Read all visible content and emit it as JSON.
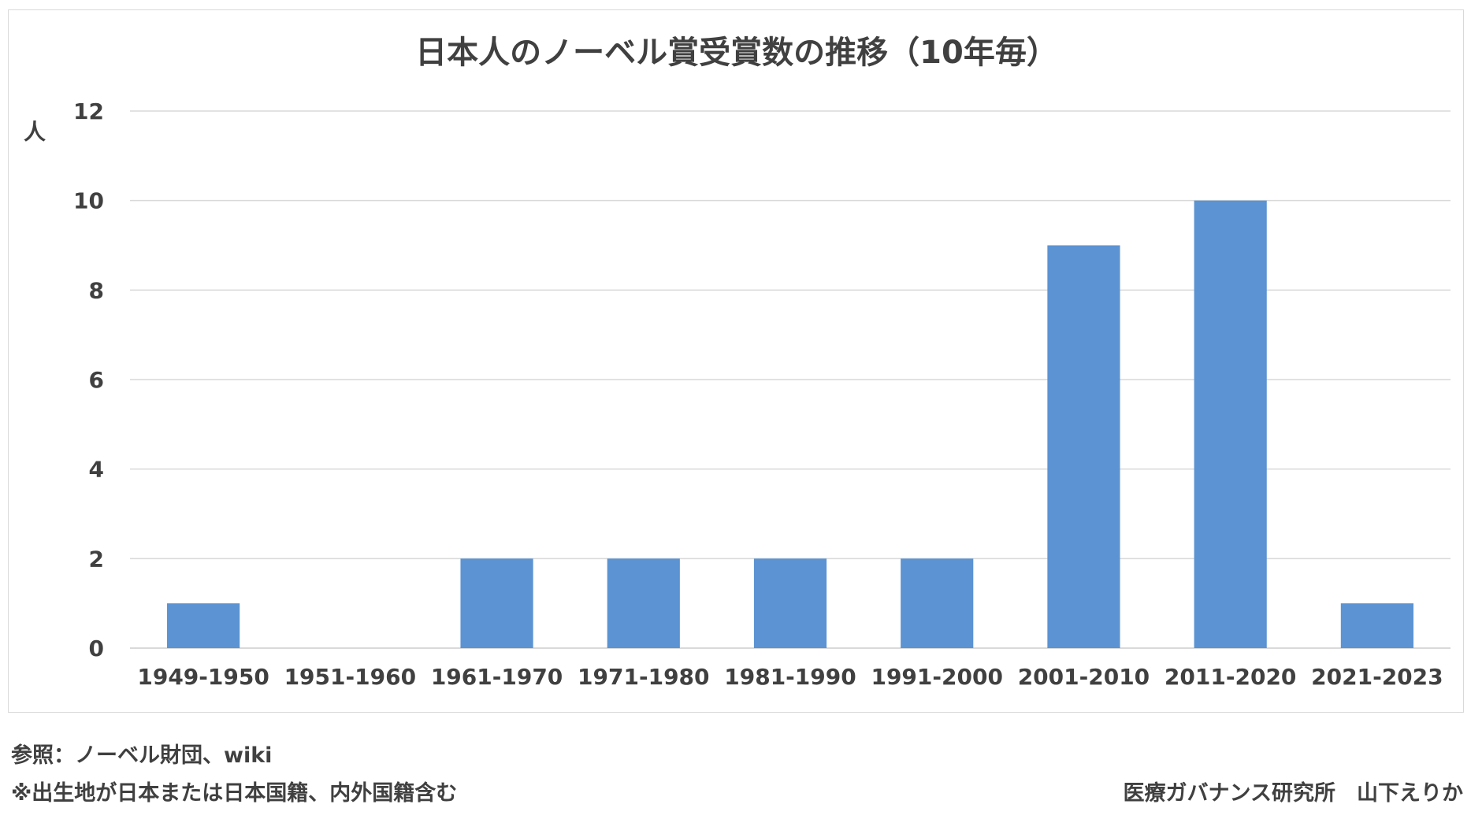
{
  "chart_data": {
    "type": "bar",
    "title": "日本人のノーベル賞受賞数の推移（10年毎）",
    "ylabel": "人",
    "xlabel": "",
    "categories": [
      "1949-1950",
      "1951-1960",
      "1961-1970",
      "1971-1980",
      "1981-1990",
      "1991-2000",
      "2001-2010",
      "2011-2020",
      "2021-2023"
    ],
    "values": [
      1,
      0,
      2,
      2,
      2,
      2,
      9,
      10,
      1
    ],
    "ylim": [
      0,
      12
    ],
    "yticks": [
      0,
      2,
      4,
      6,
      8,
      10,
      12
    ],
    "grid": true,
    "legend": "none",
    "bar_color": "#5b93d3",
    "grid_color": "#d9d9d9"
  },
  "notes": {
    "source": "参照：ノーベル財団、wiki",
    "birthplace": "※出生地が日本または日本国籍、内外国籍含む",
    "author": "医療ガバナンス研究所　山下えりか"
  }
}
